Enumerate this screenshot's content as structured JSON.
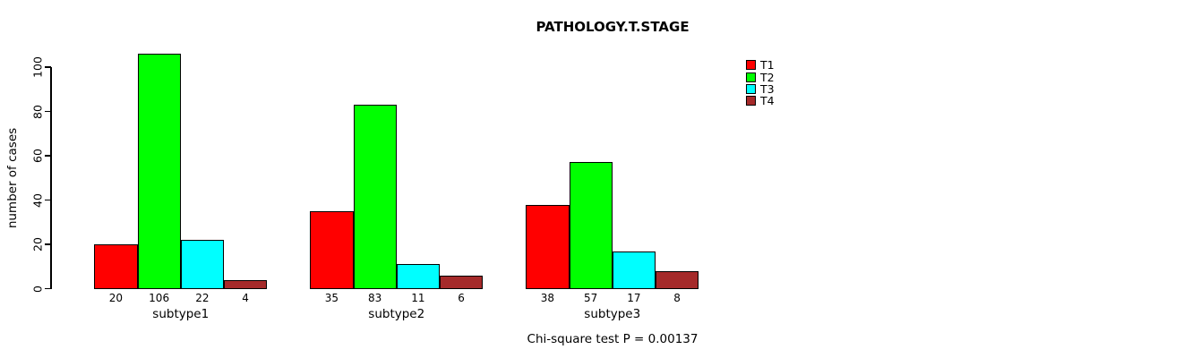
{
  "title": "PATHOLOGY.T.STAGE",
  "note": "Chi-square test P = 0.00137",
  "chart_data": {
    "type": "bar",
    "title": "PATHOLOGY.T.STAGE",
    "categories": [
      "subtype1",
      "subtype2",
      "subtype3"
    ],
    "series": [
      {
        "name": "T1",
        "color": "#FF0000",
        "values": [
          20,
          35,
          38
        ]
      },
      {
        "name": "T2",
        "color": "#00FF00",
        "values": [
          106,
          83,
          57
        ]
      },
      {
        "name": "T3",
        "color": "#00FFFF",
        "values": [
          22,
          11,
          17
        ]
      },
      {
        "name": "T4",
        "color": "#A52A2A",
        "values": [
          4,
          6,
          8
        ]
      }
    ],
    "xlabel": "",
    "ylabel": "number of cases",
    "yticks": [
      0,
      20,
      40,
      60,
      80,
      100
    ],
    "ylim": [
      0,
      100
    ],
    "grid": false,
    "bar_value_labels": true,
    "legend_position": "top-right",
    "annotation": "Chi-square test P = 0.00137"
  }
}
